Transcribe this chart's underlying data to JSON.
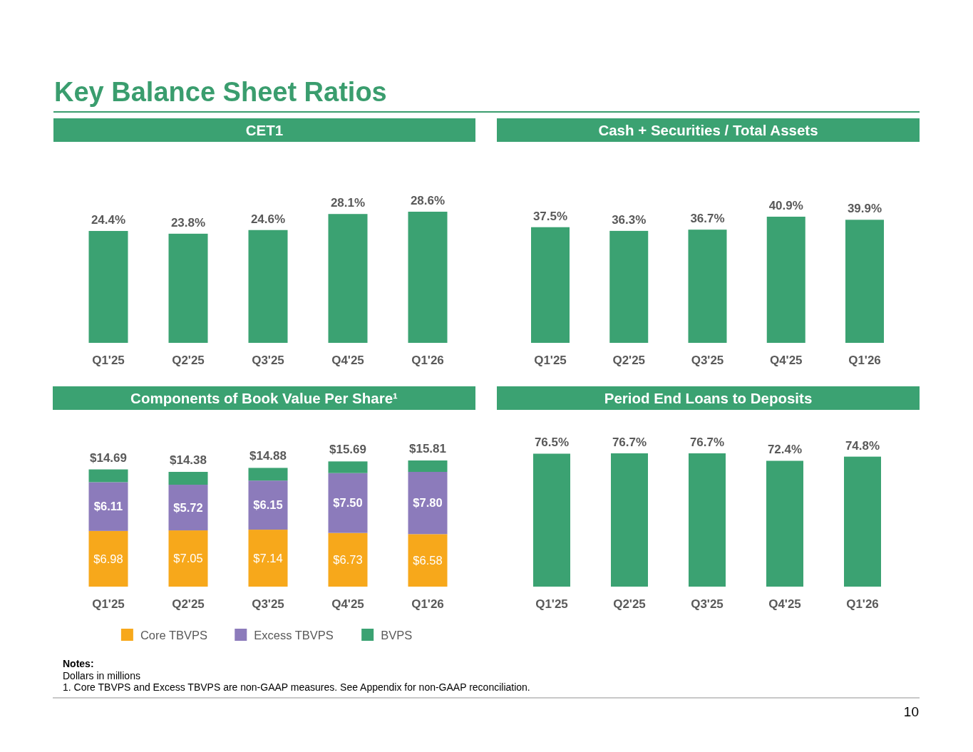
{
  "chart_data": [
    {
      "type": "other",
      "title": "Key Balance Sheet Ratios"
    },
    {
      "type": "bar",
      "title": "CET1",
      "categories": [
        "Q1'25",
        "Q2'25",
        "Q3'25",
        "Q4'25",
        "Q1'26"
      ],
      "values": [
        24.4,
        23.8,
        24.6,
        28.1,
        28.6
      ],
      "value_labels": [
        "24.4%",
        "23.8%",
        "24.6%",
        "28.1%",
        "28.6%"
      ],
      "color": "#3ba272",
      "tick_labels": "x"
    },
    {
      "type": "bar",
      "title": "Cash + Securities / Total Assets",
      "categories": [
        "Q1'25",
        "Q2'25",
        "Q3'25",
        "Q4'25",
        "Q1'26"
      ],
      "values": [
        37.5,
        36.3,
        36.7,
        40.9,
        39.9
      ],
      "value_labels": [
        "37.5%",
        "36.3%",
        "36.7%",
        "40.9%",
        "39.9%"
      ],
      "color": "#3ba272",
      "tick_labels": "x"
    },
    {
      "type": "bar",
      "title": "Components of Book Value Per Share¹",
      "categories": [
        "Q1'25",
        "Q2'25",
        "Q3'25",
        "Q4'25",
        "Q1'26"
      ],
      "stacked": true,
      "series": [
        {
          "name": "Core TBVPS",
          "color": "#f7a81b",
          "values": [
            6.98,
            7.05,
            7.14,
            6.73,
            6.58
          ],
          "value_labels": [
            "$6.98",
            "$7.05",
            "$7.14",
            "$6.73",
            "$6.58"
          ]
        },
        {
          "name": "Excess TBVPS",
          "color": "#8c7bbb",
          "values": [
            6.11,
            5.72,
            6.15,
            7.5,
            7.8
          ],
          "value_labels": [
            "$6.11",
            "$5.72",
            "$6.15",
            "$7.50",
            "$7.80"
          ]
        },
        {
          "name": "BVPS",
          "color": "#3ba272",
          "values": [
            1.6,
            1.61,
            1.59,
            1.46,
            1.43
          ]
        }
      ],
      "totals": [
        "$14.69",
        "$14.38",
        "$14.88",
        "$15.69",
        "$15.81"
      ],
      "legend": "bottom",
      "tick_labels": "x"
    },
    {
      "type": "bar",
      "title": "Period End Loans to Deposits",
      "categories": [
        "Q1'25",
        "Q2'25",
        "Q3'25",
        "Q4'25",
        "Q1'26"
      ],
      "values": [
        76.5,
        76.7,
        76.7,
        72.4,
        74.8
      ],
      "value_labels": [
        "76.5%",
        "76.7%",
        "76.7%",
        "72.4%",
        "74.8%"
      ],
      "color": "#3ba272",
      "tick_labels": "x"
    },
    {
      "type": "other",
      "annotations": [
        "Notes:",
        "Dollars in millions",
        "1. Core TBVPS and Excess TBVPS are non-GAAP measures. See Appendix for non-GAAP reconciliation.",
        "10"
      ]
    }
  ]
}
